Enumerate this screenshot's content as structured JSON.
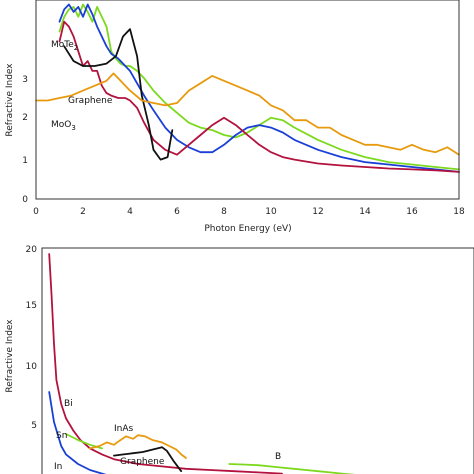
{
  "chart_data": [
    {
      "type": "line",
      "xlabel": "Photon Energy (eV)",
      "ylabel": "Refractive Index",
      "xlim": [
        0,
        18
      ],
      "ylim": [
        0,
        4
      ],
      "xticks": [
        "0",
        "2",
        "4",
        "6",
        "8",
        "10",
        "12",
        "14",
        "16",
        "18"
      ],
      "yticks": [
        "0",
        "1",
        "2",
        "3"
      ],
      "grid": false,
      "annotations": [
        {
          "text": "MoTe",
          "sub": "2",
          "x": 0.7,
          "y": 3.25
        },
        {
          "text": "Graphene",
          "x": 1.4,
          "y": 1.82
        },
        {
          "text": "MoO",
          "sub": "3",
          "x": 0.7,
          "y": 1.32
        }
      ],
      "series": [
        {
          "color": "#7cd91f",
          "x": [
            1.0,
            1.2,
            1.4,
            1.6,
            1.8,
            2.0,
            2.2,
            2.4,
            2.6,
            2.8,
            3.0,
            3.2,
            3.4,
            3.6,
            3.8,
            4.0,
            4.3,
            4.6,
            5.0,
            5.5,
            6.0,
            6.5,
            7.0,
            7.5,
            8.0,
            8.5,
            9.0,
            9.5,
            10.0,
            10.5,
            11.0,
            12.0,
            13.0,
            14.0,
            15.0,
            16.0,
            17.0,
            18.0
          ],
          "y": [
            3.4,
            3.7,
            3.85,
            3.9,
            3.7,
            3.95,
            3.8,
            3.6,
            3.9,
            3.7,
            3.5,
            3.0,
            2.85,
            2.75,
            2.7,
            2.7,
            2.6,
            2.45,
            2.2,
            1.95,
            1.75,
            1.55,
            1.45,
            1.4,
            1.3,
            1.25,
            1.35,
            1.5,
            1.65,
            1.6,
            1.45,
            1.2,
            1.0,
            0.85,
            0.75,
            0.7,
            0.65,
            0.6
          ]
        },
        {
          "color": "#1a3fd6",
          "x": [
            1.0,
            1.2,
            1.4,
            1.6,
            1.8,
            2.0,
            2.2,
            2.4,
            2.6,
            2.8,
            3.0,
            3.2,
            3.5,
            3.8,
            4.0,
            4.3,
            4.6,
            5.0,
            5.5,
            6.0,
            6.5,
            7.0,
            7.5,
            8.0,
            8.5,
            9.0,
            9.5,
            10.0,
            10.5,
            11.0,
            12.0,
            13.0,
            14.0,
            15.0,
            16.0,
            17.0,
            18.0
          ],
          "y": [
            3.6,
            3.85,
            3.95,
            3.8,
            3.9,
            3.7,
            3.95,
            3.75,
            3.5,
            3.3,
            3.1,
            2.95,
            2.85,
            2.7,
            2.6,
            2.35,
            2.1,
            1.8,
            1.45,
            1.2,
            1.05,
            0.95,
            0.95,
            1.1,
            1.3,
            1.45,
            1.5,
            1.45,
            1.35,
            1.2,
            1.0,
            0.85,
            0.75,
            0.7,
            0.65,
            0.6,
            0.55
          ]
        },
        {
          "color": "#b3123e",
          "x": [
            1.0,
            1.2,
            1.4,
            1.6,
            1.8,
            2.0,
            2.2,
            2.4,
            2.6,
            2.8,
            3.0,
            3.2,
            3.5,
            3.8,
            4.0,
            4.3,
            4.6,
            5.0,
            5.5,
            6.0,
            6.5,
            7.0,
            7.5,
            8.0,
            8.5,
            9.0,
            9.5,
            10.0,
            10.5,
            11.0,
            12.0,
            13.0,
            14.0,
            15.0,
            16.0,
            17.0,
            18.0
          ],
          "y": [
            3.2,
            3.6,
            3.5,
            3.3,
            3.0,
            2.7,
            2.8,
            2.6,
            2.6,
            2.3,
            2.15,
            2.1,
            2.05,
            2.05,
            2.0,
            1.85,
            1.55,
            1.2,
            1.0,
            0.9,
            1.1,
            1.3,
            1.5,
            1.65,
            1.5,
            1.3,
            1.1,
            0.95,
            0.85,
            0.8,
            0.72,
            0.68,
            0.65,
            0.62,
            0.6,
            0.58,
            0.55
          ]
        },
        {
          "color": "#111111",
          "x": [
            1.2,
            1.6,
            2.0,
            2.5,
            3.0,
            3.4,
            3.7,
            4.0,
            4.3,
            4.5,
            4.8,
            5.0,
            5.3,
            5.6,
            5.8
          ],
          "y": [
            3.1,
            2.8,
            2.7,
            2.7,
            2.75,
            2.9,
            3.3,
            3.45,
            2.9,
            2.1,
            1.5,
            1.0,
            0.8,
            0.85,
            1.4
          ]
        },
        {
          "color": "#e89a0e",
          "x": [
            0.0,
            0.5,
            1.0,
            1.5,
            2.0,
            2.5,
            3.0,
            3.3,
            3.6,
            4.0,
            4.5,
            5.0,
            5.5,
            6.0,
            6.5,
            7.0,
            7.5,
            8.0,
            8.5,
            9.0,
            9.5,
            10.0,
            10.5,
            11.0,
            11.5,
            12.0,
            12.5,
            13.0,
            13.5,
            14.0,
            14.5,
            15.0,
            15.5,
            16.0,
            16.5,
            17.0,
            17.5,
            18.0
          ],
          "y": [
            2.0,
            2.0,
            2.05,
            2.1,
            2.2,
            2.3,
            2.4,
            2.55,
            2.4,
            2.2,
            2.0,
            1.95,
            1.9,
            1.95,
            2.2,
            2.35,
            2.5,
            2.4,
            2.3,
            2.2,
            2.1,
            1.9,
            1.8,
            1.6,
            1.6,
            1.45,
            1.45,
            1.3,
            1.2,
            1.1,
            1.1,
            1.05,
            1.0,
            1.1,
            1.0,
            0.95,
            1.05,
            0.9
          ]
        }
      ]
    },
    {
      "type": "line",
      "xlabel": "",
      "ylabel": "Refractive Index",
      "xlim": [
        0,
        18
      ],
      "ylim": [
        0,
        20
      ],
      "yticks": [
        "20",
        "15",
        "10",
        "5"
      ],
      "grid": false,
      "annotations": [
        {
          "text": "Bi",
          "x": 1.1,
          "y": 7.0
        },
        {
          "text": "Sn",
          "x": 0.8,
          "y": 4.2
        },
        {
          "text": "InAs",
          "x": 3.4,
          "y": 4.8
        },
        {
          "text": "In",
          "x": 0.8,
          "y": 0.5
        },
        {
          "text": "Graphene",
          "x": 3.4,
          "y": 1.0
        },
        {
          "text": "B",
          "x": 10.2,
          "y": 2.2
        }
      ],
      "series": [
        {
          "color": "#b3123e",
          "x": [
            0.3,
            0.4,
            0.5,
            0.6,
            0.8,
            1.0,
            1.3,
            1.6,
            2.0,
            2.5,
            3.0,
            3.5,
            4.0,
            5.0,
            6.0,
            7.0,
            8.0,
            9.0,
            10.0
          ],
          "y": [
            19.5,
            16.0,
            12.0,
            9.0,
            7.0,
            5.8,
            4.8,
            4.0,
            3.3,
            2.8,
            2.4,
            2.2,
            2.0,
            1.8,
            1.6,
            1.5,
            1.4,
            1.3,
            1.2
          ]
        },
        {
          "color": "#1a3fd6",
          "x": [
            0.3,
            0.5,
            0.8,
            1.0,
            1.5,
            2.0,
            2.5,
            3.0,
            3.5,
            4.0,
            5.0,
            6.0
          ],
          "y": [
            8.0,
            5.5,
            3.5,
            2.8,
            2.0,
            1.5,
            1.2,
            0.9,
            0.7,
            0.5,
            0.3,
            0.2
          ]
        },
        {
          "color": "#7cd91f",
          "x": [
            1.0,
            1.5,
            2.0,
            2.5
          ],
          "y": [
            4.5,
            4.0,
            3.6,
            3.3
          ]
        },
        {
          "color": "#7cd91f",
          "x": [
            7.8,
            8.5,
            9.0,
            9.5,
            10.0,
            10.5,
            11.0,
            11.5,
            12.0,
            12.5,
            13.0
          ],
          "y": [
            2.0,
            1.95,
            1.9,
            1.8,
            1.7,
            1.6,
            1.5,
            1.4,
            1.3,
            1.2,
            1.1
          ]
        },
        {
          "color": "#e89a0e",
          "x": [
            2.0,
            2.4,
            2.7,
            3.0,
            3.2,
            3.5,
            3.8,
            4.0,
            4.3,
            4.6,
            5.0,
            5.3,
            5.6,
            5.8,
            6.0
          ],
          "y": [
            3.3,
            3.5,
            3.8,
            3.6,
            3.9,
            4.3,
            4.1,
            4.4,
            4.3,
            4.0,
            3.8,
            3.5,
            3.2,
            2.8,
            2.5
          ]
        },
        {
          "color": "#111111",
          "x": [
            3.0,
            3.4,
            3.8,
            4.2,
            4.6,
            5.0,
            5.2,
            5.5,
            5.8
          ],
          "y": [
            2.7,
            2.8,
            2.9,
            3.0,
            3.2,
            3.4,
            3.1,
            2.2,
            1.4
          ]
        }
      ]
    }
  ]
}
